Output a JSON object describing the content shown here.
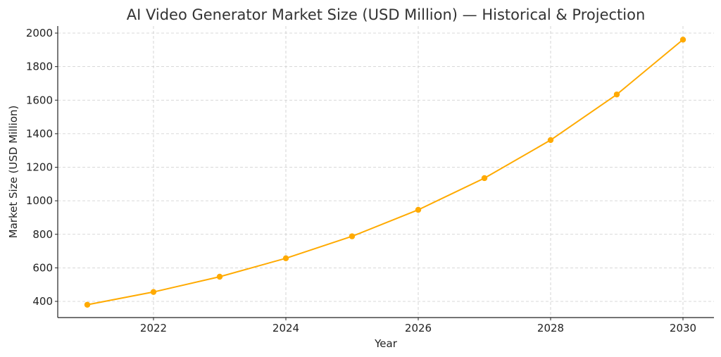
{
  "chart_data": {
    "type": "line",
    "title": "AI Video Generator Market Size (USD Million) — Historical & Projection",
    "xlabel": "Year",
    "ylabel": "Market Size (USD Million)",
    "x": [
      2021,
      2022,
      2023,
      2024,
      2025,
      2026,
      2027,
      2028,
      2029,
      2030
    ],
    "series": [
      {
        "name": "Market Size",
        "color": "#FFAA00",
        "marker": "circle",
        "values": [
          380,
          456,
          547,
          657,
          788,
          946,
          1135,
          1362,
          1634,
          1961
        ]
      }
    ],
    "x_ticks": [
      2022,
      2024,
      2026,
      2028,
      2030
    ],
    "y_ticks": [
      400,
      600,
      800,
      1000,
      1200,
      1400,
      1600,
      1800,
      2000
    ],
    "xlim": [
      2020.55,
      2030.45
    ],
    "ylim": [
      300,
      2040
    ],
    "grid": true,
    "legend": null
  },
  "labels": {
    "title": "AI Video Generator Market Size (USD Million) — Historical & Projection",
    "xlabel": "Year",
    "ylabel": "Market Size (USD Million)"
  }
}
